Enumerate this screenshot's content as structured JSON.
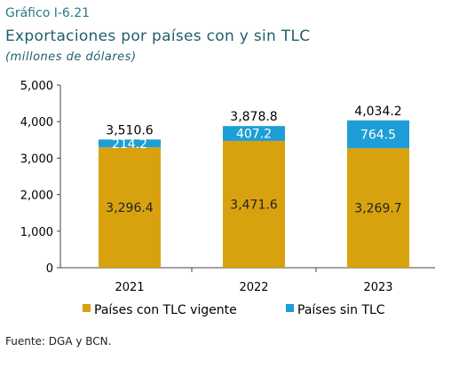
{
  "figure_label": "Gráfico I-6.21",
  "source": "Fuente: DGA y BCN.",
  "colors": {
    "tlc": "#D8A20E",
    "sin_tlc": "#1E9ED6",
    "label_on_gold": "#222222",
    "label_on_blue": "#ffffff"
  },
  "chart_data": {
    "type": "bar",
    "stacked": true,
    "title": "Exportaciones por países con y sin TLC",
    "subtitle": "(millones de dólares)",
    "categories": [
      "2021",
      "2022",
      "2023"
    ],
    "series": [
      {
        "name": "Países con TLC vigente",
        "values": [
          3296.4,
          3471.6,
          3269.7
        ],
        "labels": [
          "3,296.4",
          "3,471.6",
          "3,269.7"
        ]
      },
      {
        "name": "Países sin TLC",
        "values": [
          214.2,
          407.2,
          764.5
        ],
        "labels": [
          "214.2",
          "407.2",
          "764.5"
        ]
      }
    ],
    "totals": [
      3510.6,
      3878.8,
      4034.2
    ],
    "total_labels": [
      "3,510.6",
      "3,878.8",
      "4,034.2"
    ],
    "ylim": [
      0,
      5000
    ],
    "yticks": [
      0,
      1000,
      2000,
      3000,
      4000,
      5000
    ],
    "ytick_labels": [
      "0",
      "1,000",
      "2,000",
      "3,000",
      "4,000",
      "5,000"
    ],
    "legend_position": "bottom",
    "grid": false
  }
}
